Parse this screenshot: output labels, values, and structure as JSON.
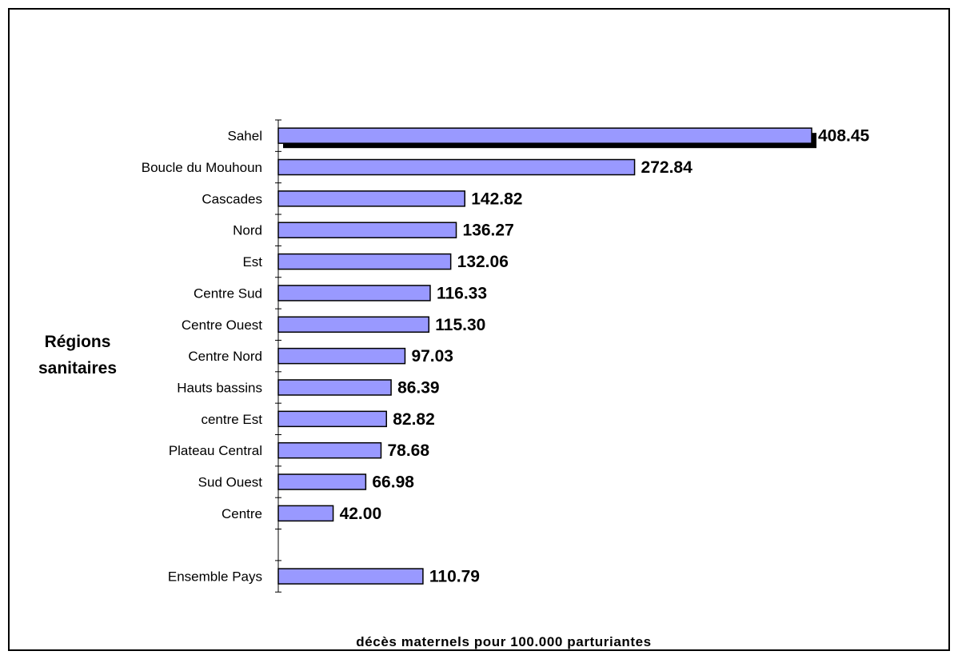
{
  "chart_data": {
    "type": "bar",
    "orientation": "horizontal",
    "categories": [
      "Sahel",
      "Boucle du Mouhoun",
      "Cascades",
      "Nord",
      "Est",
      "Centre Sud",
      "Centre Ouest",
      "Centre Nord",
      "Hauts bassins",
      "centre Est",
      "Plateau Central",
      "Sud Ouest",
      "Centre",
      "",
      "Ensemble Pays"
    ],
    "values": [
      408.45,
      272.84,
      142.82,
      136.27,
      132.06,
      116.33,
      115.3,
      97.03,
      86.39,
      82.82,
      78.68,
      66.98,
      42.0,
      null,
      110.79
    ],
    "value_labels": [
      "408.45",
      "272.84",
      "142.82",
      "136.27",
      "132.06",
      "116.33",
      "115.30",
      "97.03",
      "86.39",
      "82.82",
      "78.68",
      "66.98",
      "42.00",
      "",
      "110.79"
    ],
    "highlighted_category": "Sahel",
    "ylabel_lines": [
      "Régions",
      "sanitaires"
    ],
    "xlabel": "décès maternels pour 100.000 parturiantes",
    "xlim": [
      0,
      408.45
    ],
    "grid": false,
    "legend": "none",
    "bar_color": "#9999ff",
    "bar_border_color": "#000000"
  }
}
